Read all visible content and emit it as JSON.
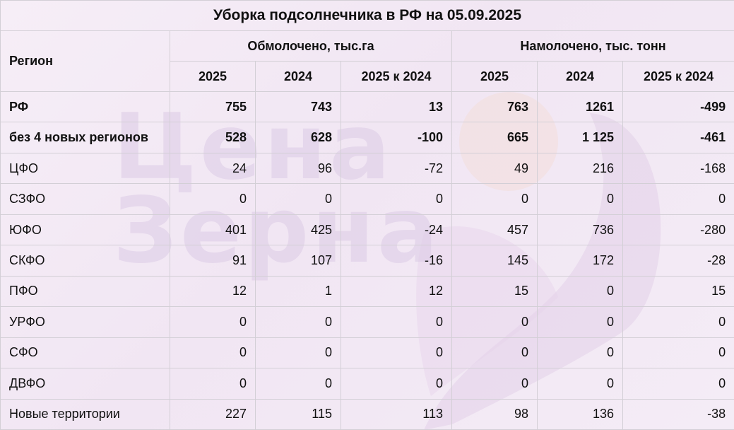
{
  "title": "Уборка подсолнечника в РФ на 05.09.2025",
  "watermark": {
    "line1": "Цена",
    "line2": "Зерна"
  },
  "header": {
    "region_label": "Регион",
    "group1": "Обмолочено, тыс.га",
    "group2": "Намолочено, тыс. тонн",
    "columns": [
      "2025",
      "2024",
      "2025 к 2024",
      "2025",
      "2024",
      "2025 к 2024"
    ]
  },
  "rows": [
    {
      "name": "РФ",
      "bold": true,
      "values": [
        "755",
        "743",
        "13",
        "763",
        "1261",
        "-499"
      ]
    },
    {
      "name": "без 4 новых регионов",
      "bold": true,
      "values": [
        "528",
        "628",
        "-100",
        "665",
        "1 125",
        "-461"
      ]
    },
    {
      "name": "ЦФО",
      "bold": false,
      "values": [
        "24",
        "96",
        "-72",
        "49",
        "216",
        "-168"
      ]
    },
    {
      "name": "СЗФО",
      "bold": false,
      "values": [
        "0",
        "0",
        "0",
        "0",
        "0",
        "0"
      ]
    },
    {
      "name": "ЮФО",
      "bold": false,
      "values": [
        "401",
        "425",
        "-24",
        "457",
        "736",
        "-280"
      ]
    },
    {
      "name": "СКФО",
      "bold": false,
      "values": [
        "91",
        "107",
        "-16",
        "145",
        "172",
        "-28"
      ]
    },
    {
      "name": "ПФО",
      "bold": false,
      "values": [
        "12",
        "1",
        "12",
        "15",
        "0",
        "15"
      ]
    },
    {
      "name": "УРФО",
      "bold": false,
      "values": [
        "0",
        "0",
        "0",
        "0",
        "0",
        "0"
      ]
    },
    {
      "name": "СФО",
      "bold": false,
      "values": [
        "0",
        "0",
        "0",
        "0",
        "0",
        "0"
      ]
    },
    {
      "name": "ДВФО",
      "bold": false,
      "values": [
        "0",
        "0",
        "0",
        "0",
        "0",
        "0"
      ]
    },
    {
      "name": "Новые территории",
      "bold": false,
      "values": [
        "227",
        "115",
        "113",
        "98",
        "136",
        "-38"
      ]
    }
  ]
}
